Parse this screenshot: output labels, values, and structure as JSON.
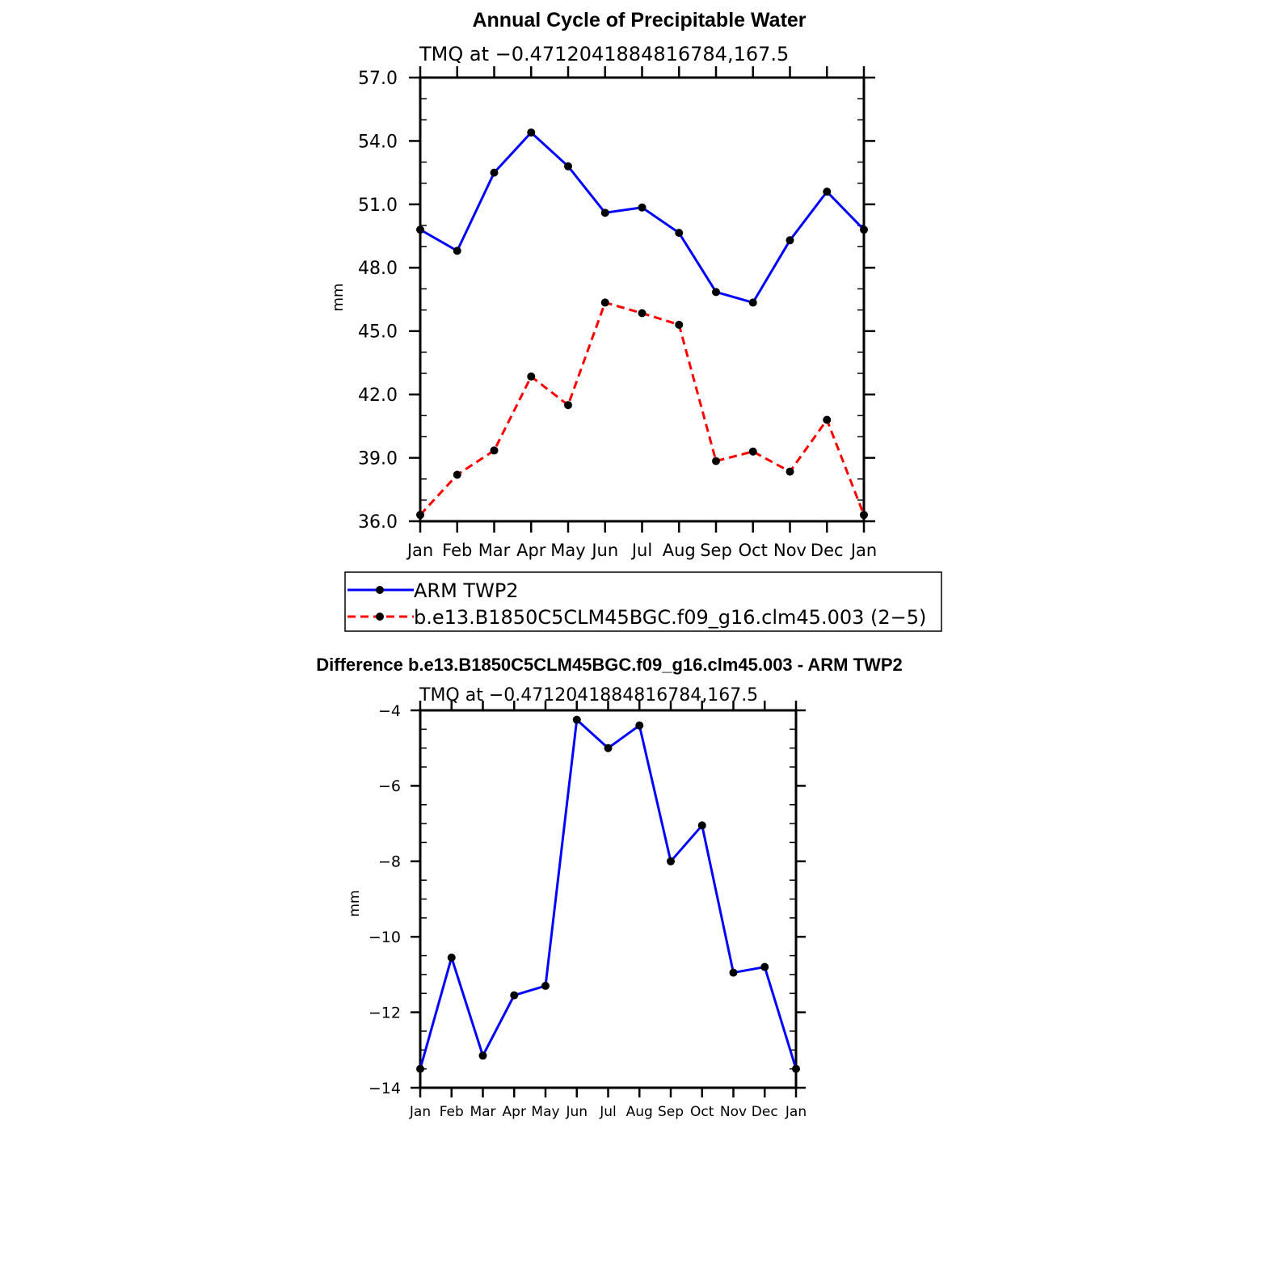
{
  "chart_data": [
    {
      "type": "line",
      "title": "Annual Cycle of Precipitable Water",
      "subtitle": "TMQ at −0.4712041884816784,167.5",
      "xlabel": "",
      "ylabel": "mm",
      "categories": [
        "Jan",
        "Feb",
        "Mar",
        "Apr",
        "May",
        "Jun",
        "Jul",
        "Aug",
        "Sep",
        "Oct",
        "Nov",
        "Dec",
        "Jan"
      ],
      "ylim": [
        36.0,
        57.0
      ],
      "yticks": [
        36.0,
        39.0,
        42.0,
        45.0,
        48.0,
        51.0,
        54.0,
        57.0
      ],
      "ytick_labels": [
        "36.0",
        "39.0",
        "42.0",
        "45.0",
        "48.0",
        "51.0",
        "54.0",
        "57.0"
      ],
      "legend_position": "below",
      "series": [
        {
          "name": "ARM TWP2",
          "color": "#0000ff",
          "dash": "solid",
          "values": [
            49.8,
            48.8,
            52.5,
            54.4,
            52.8,
            50.6,
            50.85,
            49.65,
            46.85,
            46.35,
            49.3,
            51.6,
            49.8
          ]
        },
        {
          "name": "b.e13.B1850C5CLM45BGC.f09_g16.clm45.003 (2−5)",
          "color": "#ff0000",
          "dash": "dashed",
          "values": [
            36.3,
            38.2,
            39.35,
            42.85,
            41.5,
            46.35,
            45.85,
            45.3,
            38.85,
            39.3,
            38.35,
            40.8,
            36.3
          ]
        }
      ]
    },
    {
      "type": "line",
      "title": "Difference b.e13.B1850C5CLM45BGC.f09_g16.clm45.003 - ARM TWP2",
      "subtitle": "TMQ at −0.4712041884816784,167.5",
      "xlabel": "",
      "ylabel": "mm",
      "categories": [
        "Jan",
        "Feb",
        "Mar",
        "Apr",
        "May",
        "Jun",
        "Jul",
        "Aug",
        "Sep",
        "Oct",
        "Nov",
        "Dec",
        "Jan"
      ],
      "ylim": [
        -14,
        -4
      ],
      "yticks": [
        -14,
        -12,
        -10,
        -8,
        -6,
        -4
      ],
      "ytick_labels": [
        "−14",
        "−12",
        "−10",
        "−8",
        "−6",
        "−4"
      ],
      "series": [
        {
          "color": "#0000ff",
          "dash": "solid",
          "values": [
            -13.5,
            -10.55,
            -13.15,
            -11.55,
            -11.3,
            -4.25,
            -5.0,
            -4.4,
            -8.0,
            -7.05,
            -10.95,
            -10.8,
            -13.5
          ]
        }
      ]
    }
  ]
}
